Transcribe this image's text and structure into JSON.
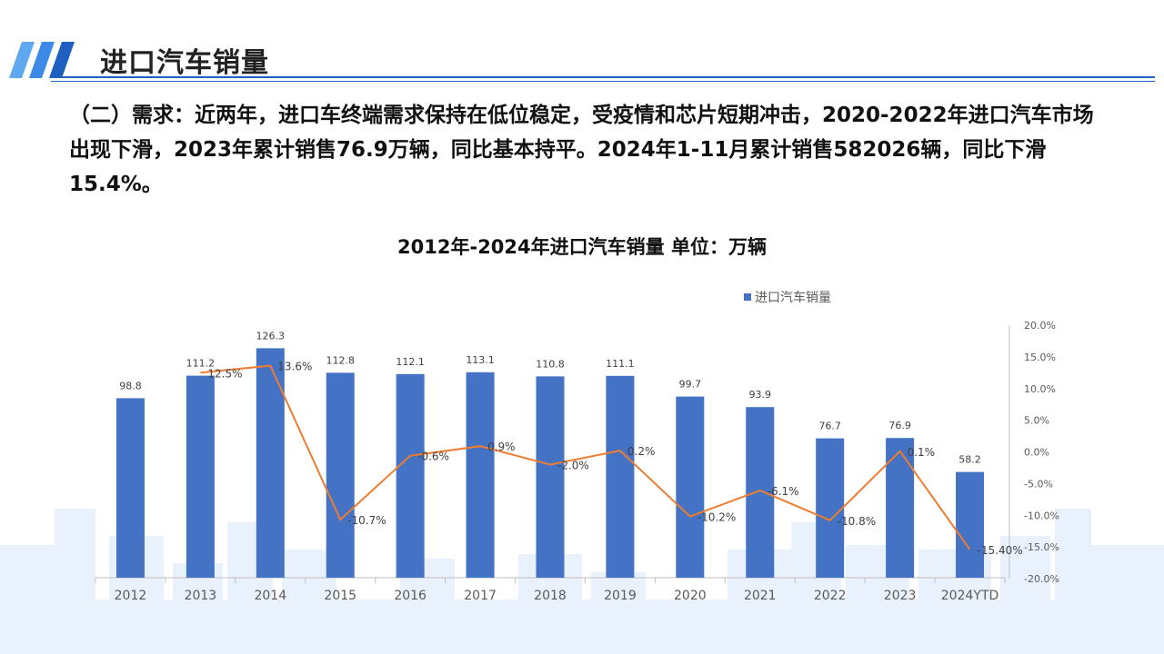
{
  "slide": {
    "title": "进口汽车销量",
    "paragraph": "（二）需求：近两年，进口车终端需求保持在低位稳定，受疫情和芯片短期冲击，2020-2022年进口汽车市场出现下滑，2023年累计销售76.9万辆，同比基本持平。2024年1-11月累计销售582026辆，同比下滑15.4%。",
    "accent_color": "#1f5fbf"
  },
  "chart_data": {
    "type": "bar",
    "title": "2012年-2024年进口汽车销量  单位：万辆",
    "categories": [
      "2012",
      "2013",
      "2014",
      "2015",
      "2016",
      "2017",
      "2018",
      "2019",
      "2020",
      "2021",
      "2022",
      "2023",
      "2024YTD"
    ],
    "series": [
      {
        "name": "进口汽车销量",
        "type": "bar",
        "color": "#4472c4",
        "axis": "left",
        "values": [
          98.8,
          111.2,
          126.3,
          112.8,
          112.1,
          113.1,
          110.8,
          111.1,
          99.7,
          93.9,
          76.7,
          76.9,
          58.2
        ],
        "labels": [
          "98.8",
          "111.2",
          "126.3",
          "112.8",
          "112.1",
          "113.1",
          "110.8",
          "111.1",
          "99.7",
          "93.9",
          "76.7",
          "76.9",
          "58.2"
        ]
      },
      {
        "type": "line",
        "color": "#ed7d31",
        "axis": "right",
        "values": [
          null,
          12.5,
          13.6,
          -10.7,
          -0.6,
          0.9,
          -2.0,
          0.2,
          -10.2,
          -6.1,
          -10.8,
          0.1,
          -15.4
        ],
        "labels": [
          null,
          "12.5%",
          "13.6%",
          "-10.7%",
          "-0.6%",
          "0.9%",
          "-2.0%",
          "0.2%",
          "-10.2%",
          "-6.1%",
          "-10.8%",
          "0.1%",
          "-15.40%"
        ]
      }
    ],
    "ylim_left": [
      0,
      140
    ],
    "ylim_right": [
      -20,
      20
    ],
    "right_ticks": [
      "20.0%",
      "15.0%",
      "10.0%",
      "5.0%",
      "0.0%",
      "-5.0%",
      "-10.0%",
      "-15.0%",
      "-20.0%"
    ],
    "legend_position": "top",
    "grid": false
  }
}
